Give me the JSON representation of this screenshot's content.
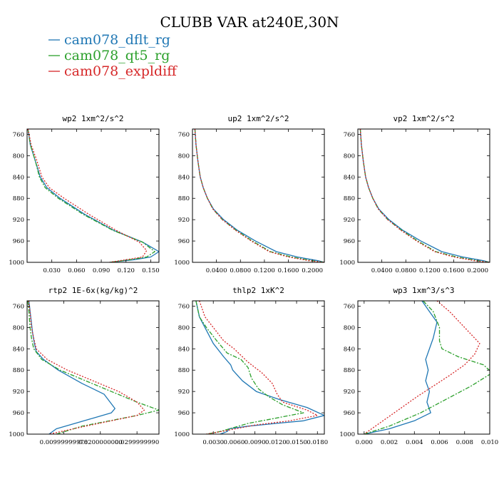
{
  "figure": {
    "title": "CLUBB VAR at240E,30N",
    "legend": [
      {
        "label": "cam078_dflt_rg",
        "color": "#1f77b4"
      },
      {
        "label": "cam078_qt5_rg",
        "color": "#2ca02c"
      },
      {
        "label": "cam078_expldiff",
        "color": "#d62728"
      }
    ]
  },
  "chart_data": [
    {
      "type": "line",
      "title": "wp2  1xm^2/s^2",
      "ylim": [
        1000,
        750
      ],
      "yticks": [
        760,
        800,
        840,
        880,
        920,
        960,
        1000
      ],
      "ytick_labels": [
        "760",
        "800",
        "840",
        "880",
        "920",
        "960",
        "1000"
      ],
      "xlim": [
        0.0,
        0.16
      ],
      "xticks": [
        0.03,
        0.06,
        0.09,
        0.12,
        0.15
      ],
      "xtick_labels": [
        "0.030",
        "0.060",
        "0.090",
        "0.120",
        "0.150"
      ],
      "series": [
        {
          "name": "cam078_dflt_rg",
          "x": [
            0.001,
            0.004,
            0.01,
            0.016,
            0.024,
            0.04,
            0.07,
            0.105,
            0.14,
            0.16,
            0.15,
            0.13,
            0.1
          ],
          "y": [
            750,
            780,
            810,
            840,
            860,
            880,
            910,
            940,
            962,
            980,
            990,
            995,
            1000
          ]
        },
        {
          "name": "cam078_qt5_rg",
          "x": [
            0.001,
            0.004,
            0.01,
            0.015,
            0.022,
            0.038,
            0.068,
            0.104,
            0.14,
            0.155,
            0.145,
            0.125,
            0.1
          ],
          "y": [
            750,
            780,
            810,
            840,
            860,
            880,
            910,
            940,
            962,
            980,
            990,
            995,
            1000
          ]
        },
        {
          "name": "cam078_expldiff",
          "x": [
            0.001,
            0.005,
            0.012,
            0.018,
            0.027,
            0.045,
            0.075,
            0.108,
            0.136,
            0.145,
            0.14,
            0.12,
            0.1
          ],
          "y": [
            750,
            780,
            810,
            840,
            860,
            880,
            910,
            940,
            962,
            978,
            990,
            995,
            1000
          ]
        }
      ]
    },
    {
      "type": "line",
      "title": "up2  1xm^2/s^2",
      "ylim": [
        1000,
        750
      ],
      "yticks": [
        760,
        800,
        840,
        880,
        920,
        960,
        1000
      ],
      "ytick_labels": [
        "760",
        "800",
        "840",
        "880",
        "920",
        "960",
        "1000"
      ],
      "xlim": [
        0.0,
        0.22
      ],
      "xticks": [
        0.04,
        0.08,
        0.12,
        0.16,
        0.2
      ],
      "xtick_labels": [
        "0.0400",
        "0.0800",
        "0.1200",
        "0.1600",
        "0.2000"
      ],
      "series": [
        {
          "name": "cam078_dflt_rg",
          "x": [
            0.004,
            0.006,
            0.009,
            0.013,
            0.018,
            0.025,
            0.035,
            0.052,
            0.075,
            0.105,
            0.14,
            0.175,
            0.21,
            0.22
          ],
          "y": [
            750,
            780,
            810,
            840,
            860,
            880,
            900,
            920,
            940,
            960,
            980,
            990,
            997,
            1000
          ]
        },
        {
          "name": "cam078_qt5_rg",
          "x": [
            0.004,
            0.006,
            0.009,
            0.013,
            0.018,
            0.025,
            0.034,
            0.05,
            0.073,
            0.1,
            0.13,
            0.165,
            0.2,
            0.22
          ],
          "y": [
            750,
            780,
            810,
            840,
            860,
            880,
            900,
            920,
            940,
            960,
            980,
            990,
            997,
            1000
          ]
        },
        {
          "name": "cam078_expldiff",
          "x": [
            0.004,
            0.006,
            0.009,
            0.013,
            0.018,
            0.025,
            0.034,
            0.05,
            0.072,
            0.098,
            0.128,
            0.16,
            0.195,
            0.22
          ],
          "y": [
            750,
            780,
            810,
            840,
            860,
            880,
            900,
            920,
            940,
            960,
            980,
            990,
            997,
            1000
          ]
        }
      ]
    },
    {
      "type": "line",
      "title": "vp2  1xm^2/s^2",
      "ylim": [
        1000,
        750
      ],
      "yticks": [
        760,
        800,
        840,
        880,
        920,
        960,
        1000
      ],
      "ytick_labels": [
        "760",
        "800",
        "840",
        "880",
        "920",
        "960",
        "1000"
      ],
      "xlim": [
        0.0,
        0.22
      ],
      "xticks": [
        0.04,
        0.08,
        0.12,
        0.16,
        0.2
      ],
      "xtick_labels": [
        "0.0400",
        "0.0800",
        "0.1200",
        "0.1600",
        "0.2000"
      ],
      "series": [
        {
          "name": "cam078_dflt_rg",
          "x": [
            0.004,
            0.006,
            0.009,
            0.013,
            0.018,
            0.025,
            0.035,
            0.052,
            0.075,
            0.105,
            0.14,
            0.175,
            0.21,
            0.22
          ],
          "y": [
            750,
            780,
            810,
            840,
            860,
            880,
            900,
            920,
            940,
            960,
            980,
            990,
            997,
            1000
          ]
        },
        {
          "name": "cam078_qt5_rg",
          "x": [
            0.004,
            0.006,
            0.009,
            0.013,
            0.018,
            0.025,
            0.034,
            0.05,
            0.073,
            0.1,
            0.13,
            0.165,
            0.2,
            0.22
          ],
          "y": [
            750,
            780,
            810,
            840,
            860,
            880,
            900,
            920,
            940,
            960,
            980,
            990,
            997,
            1000
          ]
        },
        {
          "name": "cam078_expldiff",
          "x": [
            0.004,
            0.006,
            0.009,
            0.013,
            0.018,
            0.025,
            0.034,
            0.05,
            0.072,
            0.098,
            0.128,
            0.16,
            0.195,
            0.22
          ],
          "y": [
            750,
            780,
            810,
            840,
            860,
            880,
            900,
            920,
            940,
            960,
            980,
            990,
            997,
            1000
          ]
        }
      ]
    },
    {
      "type": "line",
      "title": "rtp2  1E-6x(kg/kg)^2",
      "ylim": [
        1000,
        750
      ],
      "yticks": [
        760,
        800,
        840,
        880,
        920,
        960,
        1000
      ],
      "ytick_labels": [
        "760",
        "800",
        "840",
        "880",
        "920",
        "960",
        "1000"
      ],
      "xlim": [
        0.0,
        0.036
      ],
      "xticks": [
        0.01,
        0.02,
        0.03
      ],
      "xtick_labels": [
        "0.00999999978",
        "0.0200000000",
        "0.0299999990"
      ],
      "series": [
        {
          "name": "cam078_dflt_rg",
          "x": [
            0.0005,
            0.001,
            0.0015,
            0.002,
            0.0025,
            0.0045,
            0.0085,
            0.015,
            0.021,
            0.024,
            0.023,
            0.018,
            0.008,
            0.006
          ],
          "y": [
            750,
            780,
            810,
            830,
            845,
            860,
            880,
            905,
            925,
            952,
            960,
            970,
            990,
            1000
          ]
        },
        {
          "name": "cam078_qt5_rg",
          "x": [
            0.0002,
            0.0005,
            0.0008,
            0.0012,
            0.0018,
            0.004,
            0.009,
            0.016,
            0.023,
            0.03,
            0.036,
            0.03,
            0.015,
            0.008
          ],
          "y": [
            750,
            770,
            800,
            820,
            840,
            860,
            880,
            900,
            920,
            940,
            955,
            965,
            985,
            1000
          ]
        },
        {
          "name": "cam078_expldiff",
          "x": [
            0.0004,
            0.0008,
            0.0012,
            0.0018,
            0.0025,
            0.0055,
            0.011,
            0.018,
            0.025,
            0.03,
            0.032,
            0.03,
            0.016,
            0.006
          ],
          "y": [
            750,
            770,
            800,
            820,
            840,
            860,
            880,
            900,
            920,
            940,
            955,
            965,
            985,
            1000
          ]
        }
      ]
    },
    {
      "type": "line",
      "title": "thlp2  1xK^2",
      "ylim": [
        1000,
        750
      ],
      "yticks": [
        760,
        800,
        840,
        880,
        920,
        960,
        1000
      ],
      "ytick_labels": [
        "760",
        "800",
        "840",
        "880",
        "920",
        "960",
        "1000"
      ],
      "xlim": [
        0.0,
        0.019
      ],
      "xticks": [
        0.003,
        0.006,
        0.009,
        0.012,
        0.015,
        0.018
      ],
      "xtick_labels": [
        "0.0030",
        "0.0060",
        "0.0090",
        "0.0120",
        "0.0150",
        "0.0180"
      ],
      "series": [
        {
          "name": "cam078_dflt_rg",
          "x": [
            0.0005,
            0.001,
            0.0018,
            0.003,
            0.0045,
            0.0055,
            0.0058,
            0.0072,
            0.0092,
            0.0125,
            0.0165,
            0.019,
            0.016,
            0.012,
            0.008,
            0.0053,
            0.005,
            0.004
          ],
          "y": [
            750,
            780,
            800,
            830,
            855,
            870,
            880,
            900,
            920,
            935,
            950,
            965,
            975,
            980,
            985,
            990,
            995,
            1000
          ]
        },
        {
          "name": "cam078_qt5_rg",
          "x": [
            0.0005,
            0.001,
            0.002,
            0.0035,
            0.005,
            0.007,
            0.008,
            0.0085,
            0.0095,
            0.011,
            0.013,
            0.016,
            0.012,
            0.008,
            0.004,
            0.002
          ],
          "y": [
            750,
            780,
            800,
            825,
            848,
            860,
            875,
            895,
            915,
            930,
            945,
            960,
            970,
            980,
            995,
            1000
          ]
        },
        {
          "name": "cam078_expldiff",
          "x": [
            0.001,
            0.0018,
            0.003,
            0.0045,
            0.006,
            0.008,
            0.01,
            0.0115,
            0.0122,
            0.013,
            0.0165,
            0.018,
            0.014,
            0.009,
            0.005,
            0.002
          ],
          "y": [
            750,
            780,
            800,
            825,
            840,
            865,
            885,
            905,
            925,
            940,
            955,
            965,
            975,
            983,
            993,
            1000
          ]
        }
      ]
    },
    {
      "type": "line",
      "title": "wp3  1xm^3/s^3",
      "ylim": [
        1000,
        750
      ],
      "yticks": [
        760,
        800,
        840,
        880,
        920,
        960,
        1000
      ],
      "ytick_labels": [
        "760",
        "800",
        "840",
        "880",
        "920",
        "960",
        "1000"
      ],
      "xlim": [
        -0.0005,
        0.01
      ],
      "xticks": [
        0.0,
        0.002,
        0.004,
        0.006,
        0.008,
        0.01
      ],
      "xtick_labels": [
        "0.000",
        "0.002",
        "0.004",
        "0.006",
        "0.008",
        "0.010"
      ],
      "series": [
        {
          "name": "cam078_dflt_rg",
          "x": [
            0.0046,
            0.0052,
            0.0058,
            0.0055,
            0.0049,
            0.0051,
            0.0049,
            0.0052,
            0.005,
            0.0053,
            0.004,
            0.002,
            0.0
          ],
          "y": [
            750,
            770,
            790,
            820,
            860,
            880,
            900,
            920,
            940,
            960,
            975,
            990,
            1000
          ]
        },
        {
          "name": "cam078_qt5_rg",
          "x": [
            0.0047,
            0.0055,
            0.006,
            0.006,
            0.0062,
            0.0075,
            0.0095,
            0.0102,
            0.0085,
            0.0065,
            0.0045,
            0.002,
            0.0
          ],
          "y": [
            750,
            770,
            800,
            825,
            840,
            855,
            870,
            885,
            910,
            935,
            960,
            985,
            1000
          ]
        },
        {
          "name": "cam078_expldiff",
          "x": [
            0.0058,
            0.0068,
            0.008,
            0.0092,
            0.0088,
            0.008,
            0.0068,
            0.0055,
            0.0042,
            0.003,
            0.0015,
            0.0
          ],
          "y": [
            750,
            770,
            800,
            830,
            850,
            870,
            890,
            910,
            930,
            950,
            975,
            1000
          ]
        }
      ]
    }
  ]
}
